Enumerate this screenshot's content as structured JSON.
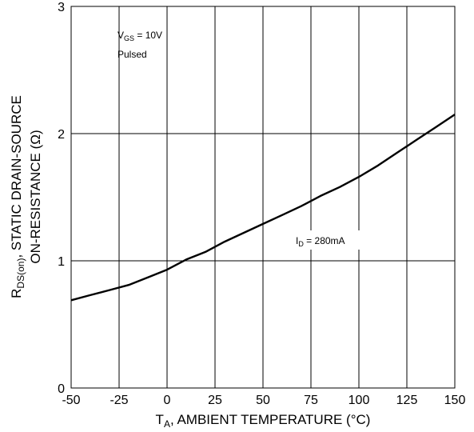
{
  "chart_data": {
    "type": "line",
    "title": "",
    "xlabel": {
      "main": "T",
      "sub": "A",
      "rest": ", AMBIENT TEMPERATURE (°C)"
    },
    "ylabel": {
      "line1_main": "R",
      "line1_sub": "DS(on)",
      "line1_rest": ", STATIC DRAIN-SOURCE",
      "line2": "ON-RESISTANCE (Ω)"
    },
    "xlim": [
      -50,
      150
    ],
    "ylim": [
      0,
      3
    ],
    "x_ticks": [
      "-50",
      "-25",
      "0",
      "25",
      "50",
      "75",
      "100",
      "125",
      "150"
    ],
    "y_ticks": [
      "0",
      "1",
      "2",
      "3"
    ],
    "grid": true,
    "annotations": {
      "vgs": {
        "main": "V",
        "sub": "GS",
        "rest": " = 10V"
      },
      "pulsed": "Pulsed",
      "id": {
        "main": "I",
        "sub": "D",
        "rest": " = 280mA"
      }
    },
    "series": [
      {
        "x": [
          -50,
          -40,
          -30,
          -20,
          -10,
          0,
          10,
          20,
          30,
          40,
          50,
          60,
          70,
          80,
          90,
          100,
          110,
          120,
          130,
          140,
          150
        ],
        "y": [
          0.69,
          0.73,
          0.77,
          0.81,
          0.87,
          0.93,
          1.01,
          1.07,
          1.15,
          1.22,
          1.29,
          1.36,
          1.43,
          1.51,
          1.58,
          1.66,
          1.75,
          1.85,
          1.95,
          2.05,
          2.15
        ]
      }
    ]
  }
}
